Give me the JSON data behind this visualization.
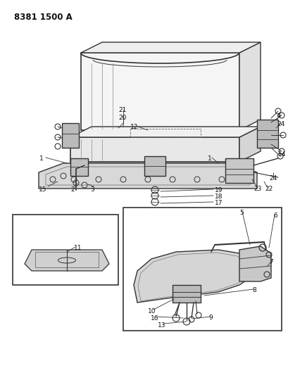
{
  "title": "8381 1500 A",
  "bg": "#ffffff",
  "lc": "#333333",
  "tc": "#111111",
  "fig_w": 4.1,
  "fig_h": 5.33,
  "dpi": 100
}
